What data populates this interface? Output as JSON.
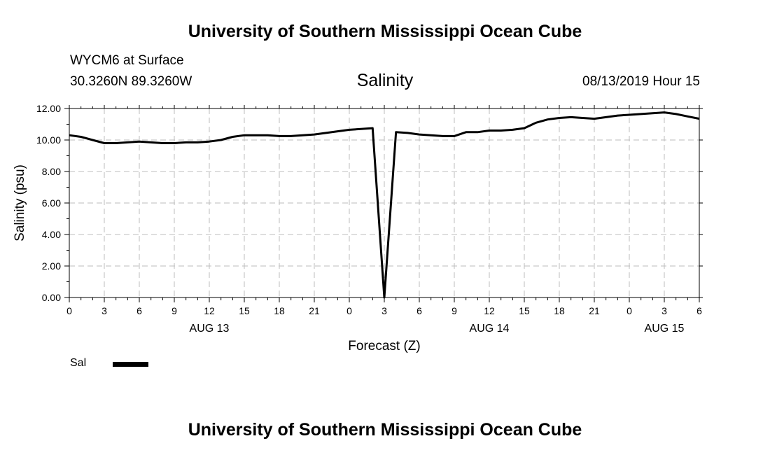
{
  "header": {
    "title": "University of Southern Mississippi Ocean Cube",
    "station": "WYCM6 at Surface",
    "coordinates": "30.3260N 89.3260W",
    "chart_title": "Salinity",
    "run_time": "08/13/2019 Hour 15"
  },
  "footer": {
    "title": "University of Southern Mississippi Ocean Cube"
  },
  "chart_data": {
    "type": "line",
    "title": "Salinity",
    "xlabel": "Forecast (Z)",
    "ylabel": "Salinity (psu)",
    "xlim": [
      0,
      54
    ],
    "ylim": [
      0,
      12
    ],
    "grid": true,
    "x_ticks": [
      {
        "x": 0,
        "label": "0"
      },
      {
        "x": 3,
        "label": "3"
      },
      {
        "x": 6,
        "label": "6"
      },
      {
        "x": 9,
        "label": "9"
      },
      {
        "x": 12,
        "label": "12"
      },
      {
        "x": 15,
        "label": "15"
      },
      {
        "x": 18,
        "label": "18"
      },
      {
        "x": 21,
        "label": "21"
      },
      {
        "x": 24,
        "label": "0"
      },
      {
        "x": 27,
        "label": "3"
      },
      {
        "x": 30,
        "label": "6"
      },
      {
        "x": 33,
        "label": "9"
      },
      {
        "x": 36,
        "label": "12"
      },
      {
        "x": 39,
        "label": "15"
      },
      {
        "x": 42,
        "label": "18"
      },
      {
        "x": 45,
        "label": "21"
      },
      {
        "x": 48,
        "label": "0"
      },
      {
        "x": 51,
        "label": "3"
      },
      {
        "x": 54,
        "label": "6"
      }
    ],
    "y_ticks": [
      {
        "y": 0,
        "label": "0.00"
      },
      {
        "y": 2,
        "label": "2.00"
      },
      {
        "y": 4,
        "label": "4.00"
      },
      {
        "y": 6,
        "label": "6.00"
      },
      {
        "y": 8,
        "label": "8.00"
      },
      {
        "y": 10,
        "label": "10.00"
      },
      {
        "y": 12,
        "label": "12.00"
      }
    ],
    "date_labels": [
      {
        "x": 12,
        "label": "AUG 13"
      },
      {
        "x": 36,
        "label": "AUG 14"
      },
      {
        "x": 51,
        "label": "AUG 15"
      }
    ],
    "series": [
      {
        "name": "Sal",
        "color": "#000000",
        "x": [
          0,
          1,
          2,
          3,
          4,
          5,
          6,
          7,
          8,
          9,
          10,
          11,
          12,
          13,
          14,
          15,
          16,
          17,
          18,
          19,
          20,
          21,
          22,
          23,
          24,
          25,
          26,
          27,
          28,
          29,
          30,
          31,
          32,
          33,
          34,
          35,
          36,
          37,
          38,
          39,
          40,
          41,
          42,
          43,
          44,
          45,
          46,
          47,
          48,
          49,
          50,
          51,
          52,
          53,
          54
        ],
        "values": [
          10.3,
          10.2,
          10.0,
          9.8,
          9.8,
          9.85,
          9.9,
          9.85,
          9.8,
          9.8,
          9.85,
          9.85,
          9.9,
          10.0,
          10.2,
          10.3,
          10.3,
          10.3,
          10.25,
          10.25,
          10.3,
          10.35,
          10.45,
          10.55,
          10.65,
          10.7,
          10.75,
          0.0,
          10.5,
          10.45,
          10.35,
          10.3,
          10.25,
          10.25,
          10.5,
          10.5,
          10.6,
          10.6,
          10.65,
          10.75,
          11.1,
          11.3,
          11.4,
          11.45,
          11.4,
          11.35,
          11.45,
          11.55,
          11.6,
          11.65,
          11.7,
          11.75,
          11.65,
          11.5,
          11.35
        ]
      }
    ],
    "legend": [
      {
        "label": "Sal",
        "color": "#000000"
      }
    ],
    "legend_position": "bottom-left"
  }
}
